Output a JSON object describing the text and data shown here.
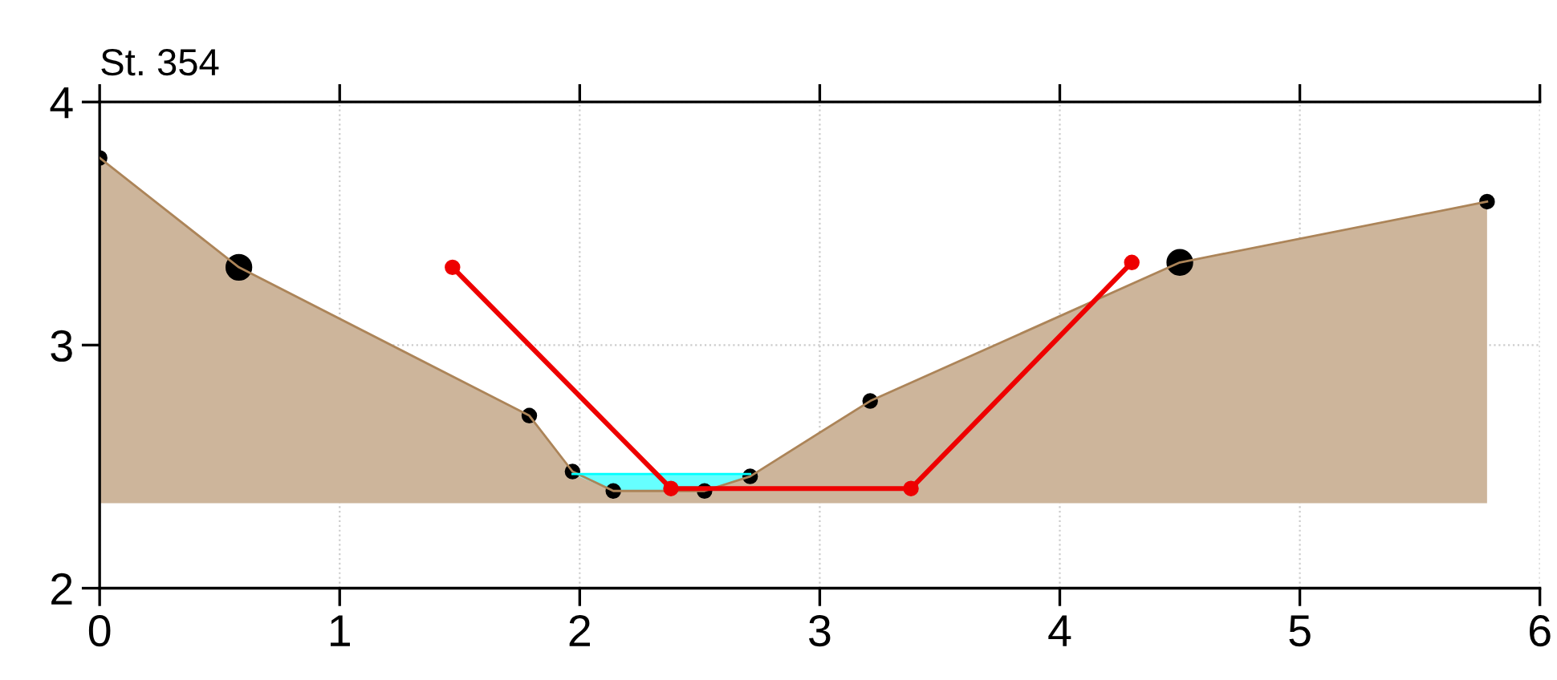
{
  "chart_data": {
    "type": "line",
    "title": "St. 354",
    "xlim": [
      0,
      6
    ],
    "ylim": [
      2,
      4
    ],
    "xticks": [
      0,
      1,
      2,
      3,
      4,
      5,
      6
    ],
    "yticks": [
      2,
      3,
      4
    ],
    "grid": true,
    "series": [
      {
        "color": "#ac8458",
        "marker": "none",
        "x": [
          0,
          0.58,
          1.79,
          1.97,
          2.14,
          2.52,
          2.71,
          3.21,
          4.5,
          5.78
        ],
        "values": [
          3.77,
          3.32,
          2.71,
          2.48,
          2.4,
          2.4,
          2.46,
          2.77,
          3.34,
          3.59
        ],
        "lower": [
          2.35,
          2.35,
          2.35,
          2.35,
          2.35,
          2.35,
          2.35,
          2.35,
          2.35,
          2.35
        ],
        "upper": [
          3.77,
          3.32,
          2.71,
          2.48,
          2.4,
          2.4,
          2.46,
          2.77,
          3.34,
          3.59
        ]
      },
      {
        "color": "#00ffff",
        "marker": "none",
        "x": [
          1.97,
          2.14,
          2.52,
          2.71
        ],
        "values": [
          2.47,
          2.47,
          2.47,
          2.47
        ],
        "lower": [
          2.47,
          2.4,
          2.4,
          2.46
        ],
        "upper": [
          2.47,
          2.47,
          2.47,
          2.47
        ]
      },
      {
        "type": "scatter",
        "color": "#000000",
        "marker": "circle",
        "x": [
          0,
          1.79,
          1.97,
          2.14,
          2.52,
          2.71,
          3.21,
          5.78
        ],
        "values": [
          3.77,
          2.71,
          2.48,
          2.4,
          2.4,
          2.46,
          2.77,
          3.59
        ]
      },
      {
        "type": "scatter",
        "color": "#000000",
        "marker": "circle",
        "x": [
          0.58,
          4.5
        ],
        "values": [
          3.32,
          3.34
        ]
      },
      {
        "color": "#ee0000",
        "marker": "circle",
        "line_style": "solid",
        "x": [
          1.47,
          2.38,
          3.38,
          4.3
        ],
        "values": [
          3.32,
          2.41,
          2.41,
          3.34
        ]
      }
    ]
  }
}
